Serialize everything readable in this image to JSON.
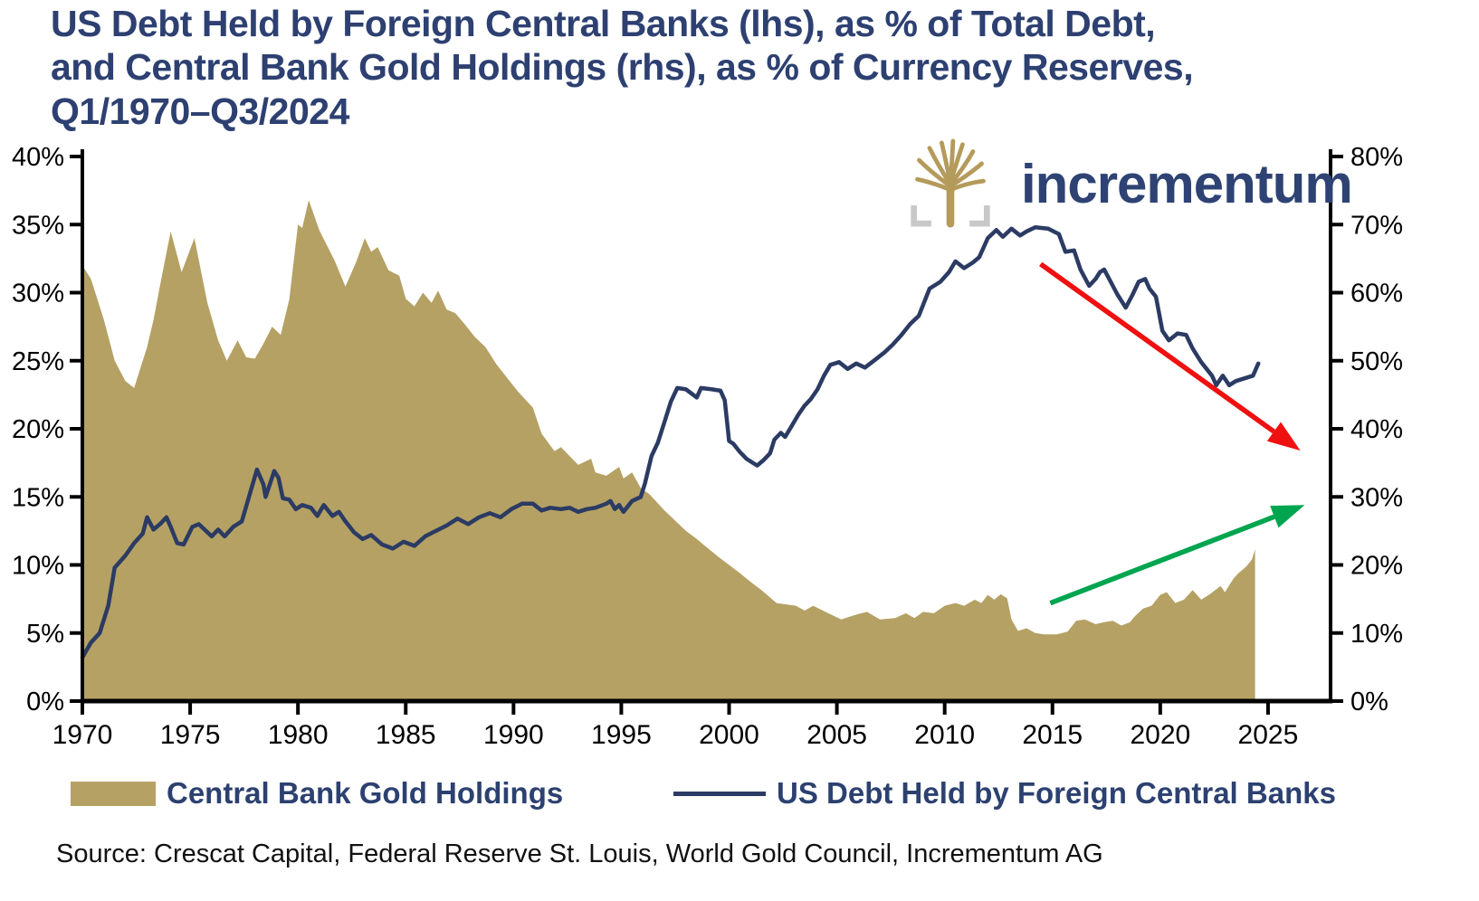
{
  "title": "US Debt Held by Foreign Central Banks (lhs), as % of Total Debt,\nand Central Bank Gold Holdings (rhs), as % of Currency Reserves,\nQ1/1970–Q3/2024",
  "brand": "incrementum",
  "legend": {
    "gold": "Central Bank Gold Holdings",
    "line": "US Debt Held by Foreign Central Banks"
  },
  "source": "Source: Crescat Capital, Federal Reserve St. Louis, World Gold Council, Incrementum AG",
  "colors": {
    "gold": "#B5A164",
    "navy": "#2B3B63",
    "title_navy": "#2D4071",
    "red_arrow": "#EF1010",
    "green_arrow": "#00A550",
    "axis": "#000000",
    "bracket_gray": "#C8C8C8"
  },
  "chart_data": {
    "type": "area+line",
    "title": "US Debt Held by Foreign Central Banks (lhs), as % of Total Debt, and Central Bank Gold Holdings (rhs), as % of Currency Reserves, Q1/1970–Q3/2024",
    "grid": false,
    "legend_position": "bottom",
    "x_axis": {
      "range": [
        1970,
        2027.9
      ],
      "ticks": [
        1970,
        1975,
        1980,
        1985,
        1990,
        1995,
        2000,
        2005,
        2010,
        2015,
        2020,
        2025
      ]
    },
    "left_axis": {
      "range": [
        0,
        40
      ],
      "ticks": [
        0,
        5,
        10,
        15,
        20,
        25,
        30,
        35,
        40
      ],
      "unit": "%",
      "series": "US Debt Held by Foreign Central Banks"
    },
    "right_axis": {
      "range": [
        0,
        80
      ],
      "ticks": [
        0,
        10,
        20,
        30,
        40,
        50,
        60,
        70,
        80
      ],
      "unit": "%",
      "series": "Central Bank Gold Holdings"
    },
    "series": [
      {
        "name": "Central Bank Gold Holdings",
        "type": "area",
        "axis": "right",
        "color": "#B5A164",
        "points": [
          [
            1970,
            64
          ],
          [
            1970.4,
            62
          ],
          [
            1971,
            56
          ],
          [
            1971.5,
            50
          ],
          [
            1972,
            47
          ],
          [
            1972.4,
            46
          ],
          [
            1973,
            52
          ],
          [
            1973.3,
            56
          ],
          [
            1973.6,
            61
          ],
          [
            1974.1,
            69
          ],
          [
            1974.6,
            63
          ],
          [
            1975.2,
            68
          ],
          [
            1975.8,
            58.5
          ],
          [
            1976.3,
            53
          ],
          [
            1976.7,
            50
          ],
          [
            1977.2,
            53
          ],
          [
            1977.6,
            50.5
          ],
          [
            1978,
            50.3
          ],
          [
            1978.4,
            52.5
          ],
          [
            1978.8,
            55
          ],
          [
            1979.2,
            53.8
          ],
          [
            1979.6,
            59
          ],
          [
            1980,
            70
          ],
          [
            1980.2,
            69.5
          ],
          [
            1980.5,
            73.6
          ],
          [
            1981,
            69.1
          ],
          [
            1981.7,
            64.7
          ],
          [
            1982.2,
            60.9
          ],
          [
            1982.7,
            64.5
          ],
          [
            1983.1,
            68
          ],
          [
            1983.4,
            66
          ],
          [
            1983.7,
            66.7
          ],
          [
            1984.2,
            63.3
          ],
          [
            1984.7,
            62.5
          ],
          [
            1985,
            59.1
          ],
          [
            1985.4,
            58
          ],
          [
            1985.8,
            60
          ],
          [
            1986.2,
            58.5
          ],
          [
            1986.5,
            60.3
          ],
          [
            1986.9,
            57.5
          ],
          [
            1987.3,
            57
          ],
          [
            1987.7,
            55.5
          ],
          [
            1988.2,
            53.5
          ],
          [
            1988.7,
            52
          ],
          [
            1989.2,
            49.5
          ],
          [
            1989.7,
            47.5
          ],
          [
            1990.2,
            45.5
          ],
          [
            1990.9,
            43.1
          ],
          [
            1991.3,
            39.3
          ],
          [
            1991.9,
            36.7
          ],
          [
            1992.2,
            37.3
          ],
          [
            1993,
            34.7
          ],
          [
            1993.6,
            35.6
          ],
          [
            1993.8,
            33.6
          ],
          [
            1994.3,
            33.1
          ],
          [
            1994.9,
            34.4
          ],
          [
            1995.1,
            32.7
          ],
          [
            1995.5,
            33.6
          ],
          [
            1995.9,
            31.3
          ],
          [
            1996.3,
            30.4
          ],
          [
            1997,
            28
          ],
          [
            1997.5,
            26.5
          ],
          [
            1998,
            25
          ],
          [
            1998.5,
            23.8
          ],
          [
            1999,
            22.5
          ],
          [
            1999.5,
            21.2
          ],
          [
            2000,
            20
          ],
          [
            2000.5,
            18.8
          ],
          [
            2001,
            17.5
          ],
          [
            2001.5,
            16.3
          ],
          [
            2002.2,
            14.4
          ],
          [
            2003.1,
            14
          ],
          [
            2003.5,
            13.3
          ],
          [
            2003.9,
            14
          ],
          [
            2004.6,
            12.9
          ],
          [
            2005.2,
            12
          ],
          [
            2005.9,
            12.7
          ],
          [
            2006.4,
            13.1
          ],
          [
            2007,
            12
          ],
          [
            2007.7,
            12.2
          ],
          [
            2008.2,
            12.9
          ],
          [
            2008.6,
            12.2
          ],
          [
            2009,
            13.1
          ],
          [
            2009.5,
            12.9
          ],
          [
            2010,
            14
          ],
          [
            2010.5,
            14.4
          ],
          [
            2010.9,
            14
          ],
          [
            2011.4,
            14.9
          ],
          [
            2011.7,
            14.4
          ],
          [
            2012,
            15.6
          ],
          [
            2012.3,
            14.9
          ],
          [
            2012.6,
            15.7
          ],
          [
            2012.9,
            15.1
          ],
          [
            2013.1,
            12
          ],
          [
            2013.4,
            10.3
          ],
          [
            2013.8,
            10.7
          ],
          [
            2014.2,
            10
          ],
          [
            2014.6,
            9.8
          ],
          [
            2015.2,
            9.8
          ],
          [
            2015.7,
            10.2
          ],
          [
            2016.1,
            11.8
          ],
          [
            2016.5,
            12
          ],
          [
            2017,
            11.3
          ],
          [
            2017.4,
            11.6
          ],
          [
            2017.8,
            11.8
          ],
          [
            2018.2,
            11.1
          ],
          [
            2018.6,
            11.6
          ],
          [
            2018.8,
            12.4
          ],
          [
            2019.2,
            13.6
          ],
          [
            2019.6,
            14
          ],
          [
            2020,
            15.6
          ],
          [
            2020.3,
            16
          ],
          [
            2020.7,
            14.4
          ],
          [
            2021.1,
            14.9
          ],
          [
            2021.5,
            16.3
          ],
          [
            2021.9,
            14.9
          ],
          [
            2022.3,
            15.7
          ],
          [
            2022.8,
            16.9
          ],
          [
            2023,
            16
          ],
          [
            2023.4,
            18
          ],
          [
            2023.6,
            18.7
          ],
          [
            2024,
            19.8
          ],
          [
            2024.25,
            20.8
          ],
          [
            2024.4,
            22.3
          ]
        ]
      },
      {
        "name": "US Debt Held by Foreign Central Banks",
        "type": "line",
        "axis": "left",
        "color": "#2B3B63",
        "points": [
          [
            1970,
            3.2
          ],
          [
            1970.4,
            4.3
          ],
          [
            1970.8,
            5
          ],
          [
            1971.2,
            7
          ],
          [
            1971.5,
            9.8
          ],
          [
            1972,
            10.7
          ],
          [
            1972.4,
            11.6
          ],
          [
            1972.8,
            12.3
          ],
          [
            1973,
            13.5
          ],
          [
            1973.3,
            12.6
          ],
          [
            1973.6,
            13
          ],
          [
            1973.9,
            13.5
          ],
          [
            1974.1,
            12.8
          ],
          [
            1974.4,
            11.6
          ],
          [
            1974.7,
            11.5
          ],
          [
            1975.1,
            12.8
          ],
          [
            1975.4,
            13
          ],
          [
            1976,
            12.1
          ],
          [
            1976.3,
            12.6
          ],
          [
            1976.6,
            12.1
          ],
          [
            1977,
            12.8
          ],
          [
            1977.4,
            13.2
          ],
          [
            1977.8,
            15.4
          ],
          [
            1978.1,
            17
          ],
          [
            1978.4,
            15.9
          ],
          [
            1978.5,
            15
          ],
          [
            1978.9,
            16.9
          ],
          [
            1979.1,
            16.4
          ],
          [
            1979.3,
            14.9
          ],
          [
            1979.6,
            14.8
          ],
          [
            1979.9,
            14.1
          ],
          [
            1980.2,
            14.4
          ],
          [
            1980.6,
            14.2
          ],
          [
            1980.9,
            13.6
          ],
          [
            1981.2,
            14.4
          ],
          [
            1981.6,
            13.6
          ],
          [
            1981.9,
            13.9
          ],
          [
            1982.2,
            13.2
          ],
          [
            1982.6,
            12.4
          ],
          [
            1983,
            11.9
          ],
          [
            1983.4,
            12.2
          ],
          [
            1983.9,
            11.5
          ],
          [
            1984.4,
            11.2
          ],
          [
            1984.9,
            11.7
          ],
          [
            1985.4,
            11.4
          ],
          [
            1985.9,
            12.1
          ],
          [
            1986.4,
            12.5
          ],
          [
            1986.9,
            12.9
          ],
          [
            1987.4,
            13.4
          ],
          [
            1987.9,
            13
          ],
          [
            1988.4,
            13.5
          ],
          [
            1988.9,
            13.8
          ],
          [
            1989.4,
            13.5
          ],
          [
            1989.9,
            14.1
          ],
          [
            1990.4,
            14.5
          ],
          [
            1990.9,
            14.5
          ],
          [
            1991.3,
            14
          ],
          [
            1991.7,
            14.2
          ],
          [
            1992.2,
            14.1
          ],
          [
            1992.6,
            14.2
          ],
          [
            1993,
            13.9
          ],
          [
            1993.4,
            14.1
          ],
          [
            1993.8,
            14.2
          ],
          [
            1994.3,
            14.5
          ],
          [
            1994.5,
            14.7
          ],
          [
            1994.7,
            14.1
          ],
          [
            1994.9,
            14.4
          ],
          [
            1995.1,
            13.9
          ],
          [
            1995.5,
            14.7
          ],
          [
            1995.9,
            15
          ],
          [
            1996.1,
            16
          ],
          [
            1996.4,
            18
          ],
          [
            1996.7,
            19
          ],
          [
            1997,
            20.5
          ],
          [
            1997.3,
            22
          ],
          [
            1997.6,
            23
          ],
          [
            1998,
            22.9
          ],
          [
            1998.5,
            22.3
          ],
          [
            1998.7,
            23
          ],
          [
            1999.2,
            22.9
          ],
          [
            1999.6,
            22.8
          ],
          [
            1999.8,
            22.1
          ],
          [
            2000,
            19.1
          ],
          [
            2000.2,
            18.9
          ],
          [
            2000.5,
            18.3
          ],
          [
            2000.8,
            17.8
          ],
          [
            2001.1,
            17.5
          ],
          [
            2001.3,
            17.3
          ],
          [
            2001.6,
            17.7
          ],
          [
            2001.9,
            18.2
          ],
          [
            2002.1,
            19.2
          ],
          [
            2002.4,
            19.7
          ],
          [
            2002.6,
            19.4
          ],
          [
            2002.9,
            20.2
          ],
          [
            2003.2,
            21
          ],
          [
            2003.5,
            21.7
          ],
          [
            2003.8,
            22.2
          ],
          [
            2004.1,
            22.9
          ],
          [
            2004.4,
            23.9
          ],
          [
            2004.7,
            24.7
          ],
          [
            2005.1,
            24.9
          ],
          [
            2005.5,
            24.4
          ],
          [
            2005.9,
            24.8
          ],
          [
            2006.3,
            24.5
          ],
          [
            2006.8,
            25.1
          ],
          [
            2007.2,
            25.6
          ],
          [
            2007.6,
            26.2
          ],
          [
            2008,
            26.9
          ],
          [
            2008.4,
            27.7
          ],
          [
            2008.8,
            28.3
          ],
          [
            2009.3,
            30.3
          ],
          [
            2009.8,
            30.8
          ],
          [
            2010.2,
            31.5
          ],
          [
            2010.5,
            32.3
          ],
          [
            2010.9,
            31.8
          ],
          [
            2011.3,
            32.2
          ],
          [
            2011.6,
            32.6
          ],
          [
            2012,
            34
          ],
          [
            2012.4,
            34.6
          ],
          [
            2012.7,
            34.1
          ],
          [
            2013.1,
            34.7
          ],
          [
            2013.5,
            34.2
          ],
          [
            2013.8,
            34.5
          ],
          [
            2014.2,
            34.8
          ],
          [
            2014.8,
            34.7
          ],
          [
            2015.3,
            34.3
          ],
          [
            2015.6,
            33
          ],
          [
            2016,
            33.1
          ],
          [
            2016.3,
            31.7
          ],
          [
            2016.7,
            30.5
          ],
          [
            2017,
            31
          ],
          [
            2017.2,
            31.5
          ],
          [
            2017.4,
            31.7
          ],
          [
            2017.7,
            30.8
          ],
          [
            2018,
            29.9
          ],
          [
            2018.4,
            28.9
          ],
          [
            2018.7,
            29.8
          ],
          [
            2019,
            30.8
          ],
          [
            2019.3,
            31
          ],
          [
            2019.5,
            30.3
          ],
          [
            2019.8,
            29.7
          ],
          [
            2020.1,
            27.2
          ],
          [
            2020.4,
            26.5
          ],
          [
            2020.8,
            27
          ],
          [
            2021.2,
            26.9
          ],
          [
            2021.5,
            25.9
          ],
          [
            2021.9,
            24.9
          ],
          [
            2022.4,
            23.9
          ],
          [
            2022.6,
            23.2
          ],
          [
            2022.9,
            23.9
          ],
          [
            2023.2,
            23.2
          ],
          [
            2023.5,
            23.5
          ],
          [
            2023.9,
            23.7
          ],
          [
            2024.3,
            23.9
          ],
          [
            2024.55,
            24.8
          ]
        ]
      }
    ],
    "annotations": [
      {
        "name": "red-decline-arrow",
        "type": "arrow",
        "color": "#EF1010",
        "axis": "right",
        "from": [
          2014.45,
          64.2
        ],
        "to": [
          2026.5,
          36.8
        ]
      },
      {
        "name": "green-rise-arrow",
        "type": "arrow",
        "color": "#00A550",
        "axis": "right",
        "from": [
          2014.9,
          14.4
        ],
        "to": [
          2026.7,
          28.8
        ]
      }
    ]
  }
}
